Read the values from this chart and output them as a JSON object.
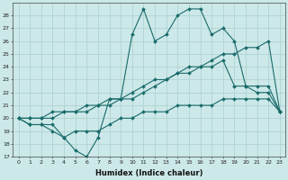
{
  "xlabel": "Humidex (Indice chaleur)",
  "x": [
    0,
    1,
    2,
    3,
    4,
    5,
    6,
    7,
    8,
    9,
    10,
    11,
    12,
    13,
    14,
    15,
    16,
    17,
    18,
    19,
    20,
    21,
    22,
    23
  ],
  "line1": [
    20,
    19.5,
    19.5,
    19,
    18.5,
    17.5,
    17,
    18.5,
    21.5,
    21.5,
    26.5,
    28.5,
    26,
    26.5,
    28,
    28.5,
    28.5,
    26.5,
    27,
    26,
    22.5,
    22.5,
    22.5,
    20.5
  ],
  "line2": [
    20,
    19.5,
    19.5,
    19.5,
    18.5,
    19,
    19,
    19,
    19.5,
    20,
    20,
    20.5,
    20.5,
    20.5,
    21,
    21,
    21,
    21,
    21.5,
    21.5,
    21.5,
    21.5,
    21.5,
    20.5
  ],
  "line3": [
    20,
    20,
    20,
    20.5,
    20.5,
    20.5,
    21,
    21,
    21.5,
    21.5,
    22,
    22.5,
    23,
    23,
    23.5,
    24,
    24,
    24.5,
    25,
    25,
    25.5,
    25.5,
    26,
    20.5
  ],
  "line4": [
    20,
    20,
    20,
    20,
    20.5,
    20.5,
    20.5,
    21,
    21,
    21.5,
    21.5,
    22,
    22.5,
    23,
    23.5,
    23.5,
    24,
    24,
    24.5,
    22.5,
    22.5,
    22,
    22,
    20.5
  ],
  "ylim": [
    17,
    29
  ],
  "yticks": [
    17,
    18,
    19,
    20,
    21,
    22,
    23,
    24,
    25,
    26,
    27,
    28
  ],
  "background_color": "#cce8e8",
  "grid_color": "#aacfcf",
  "line_color": "#1a6b6b",
  "markersize": 2.0,
  "linewidth": 0.8
}
